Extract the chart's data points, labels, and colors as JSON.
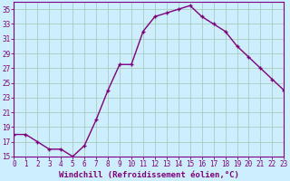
{
  "x": [
    0,
    1,
    2,
    3,
    4,
    5,
    6,
    7,
    8,
    9,
    10,
    11,
    12,
    13,
    14,
    15,
    16,
    17,
    18,
    19,
    20,
    21,
    22,
    23
  ],
  "y": [
    18.0,
    18.0,
    17.0,
    16.0,
    16.0,
    15.0,
    16.5,
    20.0,
    24.0,
    27.5,
    27.5,
    32.0,
    34.0,
    34.5,
    35.0,
    35.5,
    34.0,
    33.0,
    32.0,
    30.0,
    28.5,
    27.0,
    25.5,
    24.0
  ],
  "xlabel": "Windchill (Refroidissement éolien,°C)",
  "line_color": "#800080",
  "marker": "+",
  "bg_color": "#cceeff",
  "grid_color": "#aaccbb",
  "xlim": [
    0,
    23
  ],
  "ylim": [
    15,
    36
  ],
  "yticks": [
    15,
    17,
    19,
    21,
    23,
    25,
    27,
    29,
    31,
    33,
    35
  ],
  "xticks": [
    0,
    1,
    2,
    3,
    4,
    5,
    6,
    7,
    8,
    9,
    10,
    11,
    12,
    13,
    14,
    15,
    16,
    17,
    18,
    19,
    20,
    21,
    22,
    23
  ],
  "tick_color": "#800080",
  "label_fontsize": 6.5,
  "tick_fontsize": 5.5
}
